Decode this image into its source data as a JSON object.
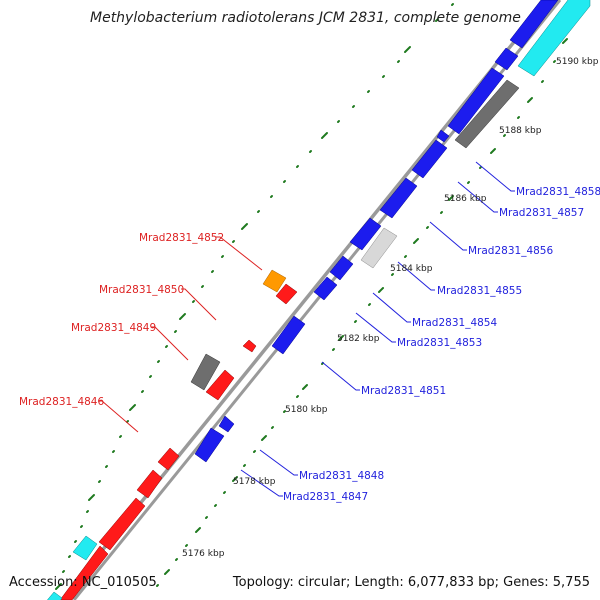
{
  "title": "Methylobacterium radiotolerans JCM 2831, complete genome",
  "accession": "Accession: NC_010505",
  "summary": "Topology: circular; Length: 6,077,833 bp; Genes: 5,755",
  "colors": {
    "backbone": "#9a9a9a",
    "tick": "#1f7a1f",
    "forward_label": "#2222dd",
    "reverse_label": "#dd2222"
  },
  "kbp_labels": [
    "5176 kbp",
    "5178 kbp",
    "5180 kbp",
    "5182 kbp",
    "5184 kbp",
    "5186 kbp",
    "5188 kbp",
    "5190 kbp"
  ],
  "forward_genes": [
    {
      "label": "Mrad2831_4858"
    },
    {
      "label": "Mrad2831_4857"
    },
    {
      "label": "Mrad2831_4856"
    },
    {
      "label": "Mrad2831_4855"
    },
    {
      "label": "Mrad2831_4854"
    },
    {
      "label": "Mrad2831_4853"
    },
    {
      "label": "Mrad2831_4851"
    },
    {
      "label": "Mrad2831_4848"
    },
    {
      "label": "Mrad2831_4847"
    }
  ],
  "reverse_genes": [
    {
      "label": "Mrad2831_4852"
    },
    {
      "label": "Mrad2831_4850"
    },
    {
      "label": "Mrad2831_4849"
    },
    {
      "label": "Mrad2831_4846"
    }
  ]
}
